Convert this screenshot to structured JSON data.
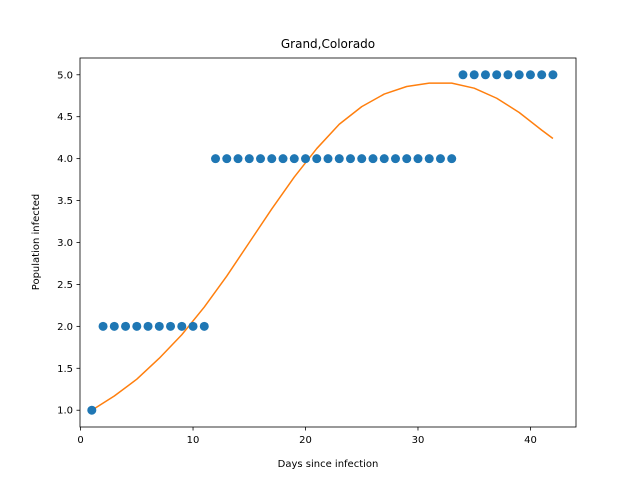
{
  "chart_data": {
    "type": "scatter",
    "title": "Grand,Colorado",
    "xlabel": "Days since infection",
    "ylabel": "Population infected",
    "xlim": [
      -0.05,
      44.05
    ],
    "ylim": [
      0.8,
      5.2
    ],
    "xticks": [
      0,
      10,
      20,
      30,
      40
    ],
    "xtick_labels": [
      "0",
      "10",
      "20",
      "30",
      "40"
    ],
    "yticks": [
      1.0,
      1.5,
      2.0,
      2.5,
      3.0,
      3.5,
      4.0,
      4.5,
      5.0
    ],
    "ytick_labels": [
      "1.0",
      "1.5",
      "2.0",
      "2.5",
      "3.0",
      "3.5",
      "4.0",
      "4.5",
      "5.0"
    ],
    "grid": false,
    "series": [
      {
        "kind": "scatter",
        "color": "#1f77b4",
        "x": [
          1,
          2,
          3,
          4,
          5,
          6,
          7,
          8,
          9,
          10,
          11,
          12,
          13,
          14,
          15,
          16,
          17,
          18,
          19,
          20,
          21,
          22,
          23,
          24,
          25,
          26,
          27,
          28,
          29,
          30,
          31,
          32,
          33,
          34,
          35,
          36,
          37,
          38,
          39,
          40,
          41,
          42
        ],
        "y": [
          1,
          2,
          2,
          2,
          2,
          2,
          2,
          2,
          2,
          2,
          2,
          4,
          4,
          4,
          4,
          4,
          4,
          4,
          4,
          4,
          4,
          4,
          4,
          4,
          4,
          4,
          4,
          4,
          4,
          4,
          4,
          4,
          4,
          5,
          5,
          5,
          5,
          5,
          5,
          5,
          5,
          5
        ]
      },
      {
        "kind": "line",
        "color": "#ff7f0e",
        "x": [
          1,
          3,
          5,
          7,
          9,
          11,
          13,
          15,
          17,
          19,
          21,
          23,
          25,
          27,
          29,
          31,
          33,
          35,
          37,
          39,
          41,
          42
        ],
        "y": [
          1.0,
          1.17,
          1.37,
          1.62,
          1.9,
          2.23,
          2.6,
          3.0,
          3.4,
          3.78,
          4.12,
          4.41,
          4.62,
          4.77,
          4.86,
          4.9,
          4.9,
          4.84,
          4.72,
          4.55,
          4.34,
          4.24
        ]
      }
    ]
  }
}
